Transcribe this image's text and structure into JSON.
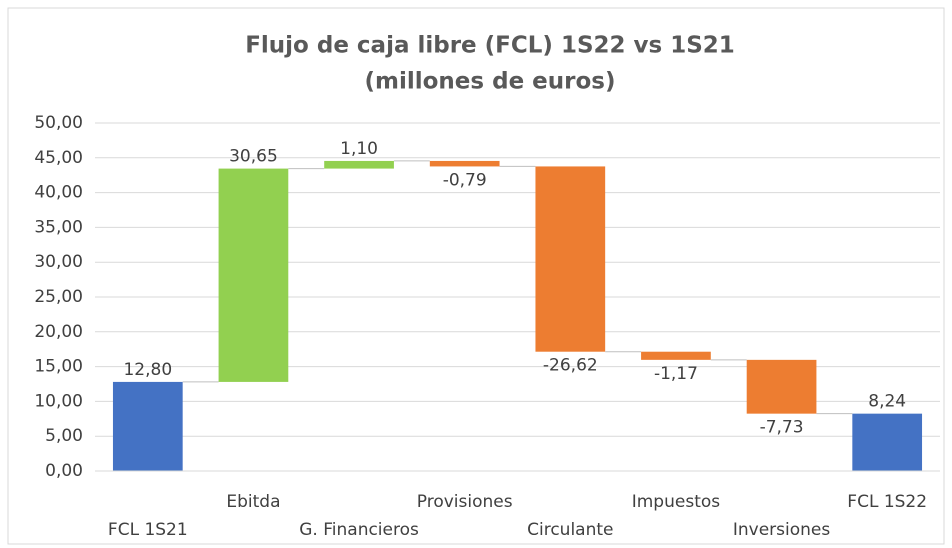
{
  "chart_data": {
    "type": "waterfall",
    "title": "Flujo de caja libre (FCL) 1S22 vs 1S21",
    "subtitle": "(millones de euros)",
    "categories": [
      "FCL 1S21",
      "Ebitda",
      "G. Financieros",
      "Provisiones",
      "Circulante",
      "Impuestos",
      "Inversiones",
      "FCL 1S22"
    ],
    "values": [
      12.8,
      30.65,
      1.1,
      -0.79,
      -26.62,
      -1.17,
      -7.73,
      8.24
    ],
    "value_labels": [
      "12,80",
      "30,65",
      "1,10",
      "-0,79",
      "-26,62",
      "-1,17",
      "-7,73",
      "8,24"
    ],
    "measure": [
      "total",
      "relative",
      "relative",
      "relative",
      "relative",
      "relative",
      "relative",
      "total"
    ],
    "colors": {
      "total": "#4472c4",
      "increase": "#92d050",
      "decrease": "#ed7d31"
    },
    "ylim": [
      0,
      50
    ],
    "yticks": [
      {
        "value": 0,
        "label": "0,00"
      },
      {
        "value": 5,
        "label": "5,00"
      },
      {
        "value": 10,
        "label": "10,00"
      },
      {
        "value": 15,
        "label": "15,00"
      },
      {
        "value": 20,
        "label": "20,00"
      },
      {
        "value": 25,
        "label": "25,00"
      },
      {
        "value": 30,
        "label": "30,00"
      },
      {
        "value": 35,
        "label": "35,00"
      },
      {
        "value": 40,
        "label": "40,00"
      },
      {
        "value": 45,
        "label": "45,00"
      },
      {
        "value": 50,
        "label": "50,00"
      }
    ],
    "grid": true
  }
}
